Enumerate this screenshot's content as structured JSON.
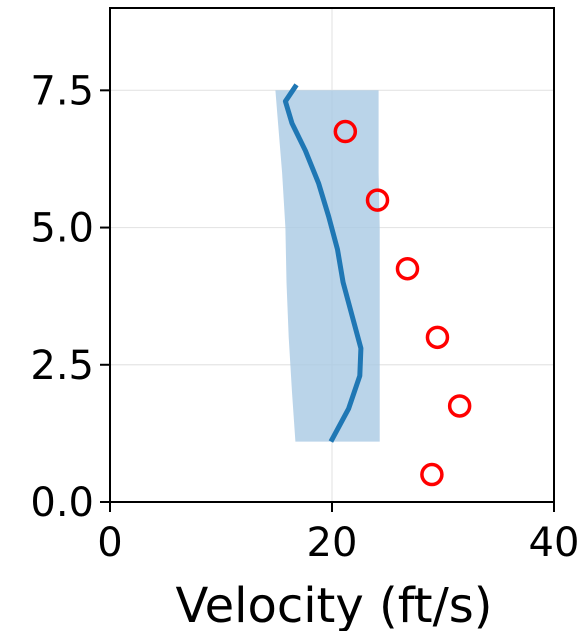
{
  "chart_data": {
    "type": "line",
    "title": "",
    "xlabel": "Velocity (ft/s)",
    "ylabel": "",
    "xlim": [
      0,
      40
    ],
    "ylim": [
      0,
      9
    ],
    "grid": true,
    "x_ticks": [
      {
        "value": 0,
        "label": "0"
      },
      {
        "value": 20,
        "label": "20"
      },
      {
        "value": 40,
        "label": "40"
      }
    ],
    "y_ticks": [
      {
        "value": 0,
        "label": "0.0"
      },
      {
        "value": 2.5,
        "label": "2.5"
      },
      {
        "value": 5,
        "label": "5.0"
      },
      {
        "value": 7.5,
        "label": "7.5"
      }
    ],
    "series": [
      {
        "kind": "band",
        "color": "#a9c9e4",
        "points": [
          {
            "y": 1.1,
            "lo": 16.7,
            "hi": 24.3
          },
          {
            "y": 2.0,
            "lo": 16.4,
            "hi": 24.3
          },
          {
            "y": 3.0,
            "lo": 16.1,
            "hi": 24.3
          },
          {
            "y": 4.0,
            "lo": 15.9,
            "hi": 24.3
          },
          {
            "y": 5.0,
            "lo": 15.8,
            "hi": 24.3
          },
          {
            "y": 6.0,
            "lo": 15.5,
            "hi": 24.2
          },
          {
            "y": 7.0,
            "lo": 15.1,
            "hi": 24.2
          },
          {
            "y": 7.5,
            "lo": 14.9,
            "hi": 24.2
          }
        ]
      },
      {
        "kind": "line",
        "color": "#1f77b4",
        "points": [
          {
            "x": 19.9,
            "y": 1.1
          },
          {
            "x": 21.5,
            "y": 1.7
          },
          {
            "x": 22.5,
            "y": 2.3
          },
          {
            "x": 22.6,
            "y": 2.8
          },
          {
            "x": 21.8,
            "y": 3.4
          },
          {
            "x": 21.0,
            "y": 4.0
          },
          {
            "x": 20.5,
            "y": 4.6
          },
          {
            "x": 19.7,
            "y": 5.2
          },
          {
            "x": 18.8,
            "y": 5.8
          },
          {
            "x": 17.6,
            "y": 6.4
          },
          {
            "x": 16.4,
            "y": 6.9
          },
          {
            "x": 15.8,
            "y": 7.3
          },
          {
            "x": 16.8,
            "y": 7.6
          }
        ]
      },
      {
        "kind": "scatter",
        "color": "#ff0000",
        "marker": "open-circle",
        "points": [
          {
            "x": 29.0,
            "y": 0.5
          },
          {
            "x": 31.5,
            "y": 1.75
          },
          {
            "x": 29.5,
            "y": 3.0
          },
          {
            "x": 26.8,
            "y": 4.25
          },
          {
            "x": 24.1,
            "y": 5.5
          },
          {
            "x": 21.2,
            "y": 6.75
          }
        ]
      }
    ]
  }
}
